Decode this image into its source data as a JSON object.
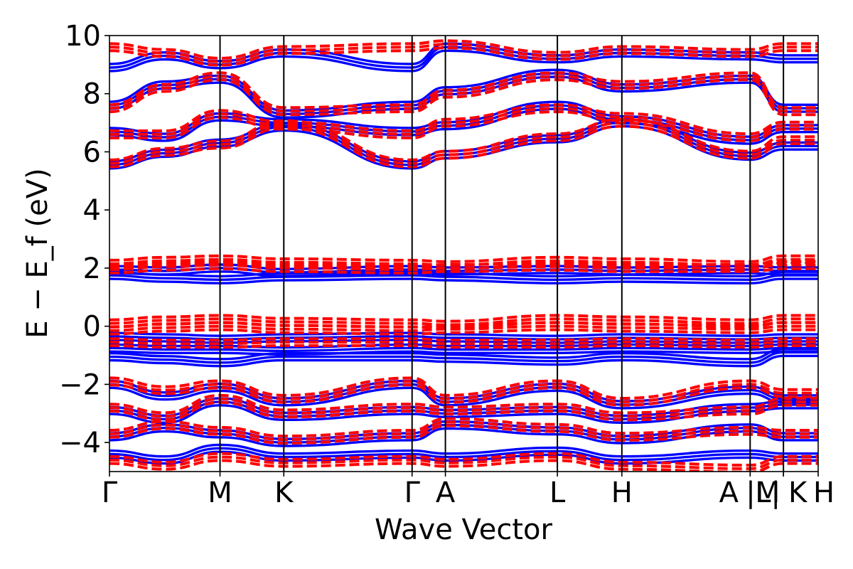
{
  "chart_data": {
    "type": "line",
    "title": "",
    "xlabel": "Wave Vector",
    "ylabel": "E − E_f (eV)",
    "ylim": [
      -5,
      10
    ],
    "yticks": [
      -4,
      -2,
      0,
      2,
      4,
      6,
      8,
      10
    ],
    "ytick_labels": [
      "−4",
      "−2",
      "0",
      "2",
      "4",
      "6",
      "8",
      "10"
    ],
    "xlim": [
      0,
      1
    ],
    "high_symmetry_points": [
      {
        "label": "Γ",
        "x": 0.0
      },
      {
        "label": "M",
        "x": 0.156
      },
      {
        "label": "K",
        "x": 0.246
      },
      {
        "label": "Γ",
        "x": 0.427
      },
      {
        "label": "A",
        "x": 0.474
      },
      {
        "label": "L",
        "x": 0.632
      },
      {
        "label": "H",
        "x": 0.723
      },
      {
        "label": "A",
        "x": 0.904
      },
      {
        "label": "|M",
        "x": 0.904
      },
      {
        "label": "L|",
        "x": 0.951
      },
      {
        "label": "K",
        "x": 0.951
      },
      {
        "label": "H",
        "x": 1.0
      }
    ],
    "colors": {
      "blue_series": "#0000ff",
      "red_series": "#ff0000"
    },
    "series": [
      {
        "style": "solid",
        "color": "#0000ff",
        "x": [
          0.0,
          0.078,
          0.156,
          0.246,
          0.427,
          0.474,
          0.632,
          0.723,
          0.904,
          0.951
        ],
        "bands": [
          [
            5.55,
            5.95,
            6.3,
            6.85,
            5.55,
            5.9,
            6.45,
            7.0,
            5.85,
            6.2
          ],
          [
            6.7,
            6.5,
            7.2,
            7.0,
            6.7,
            6.9,
            7.6,
            7.1,
            6.4,
            6.8
          ],
          [
            7.6,
            8.3,
            8.5,
            7.3,
            7.6,
            8.1,
            8.7,
            8.2,
            8.5,
            7.5
          ],
          [
            8.9,
            9.3,
            9.0,
            9.4,
            8.9,
            9.6,
            9.2,
            9.4,
            9.3,
            9.2
          ],
          [
            1.75,
            1.65,
            1.6,
            1.7,
            1.75,
            1.7,
            1.6,
            1.65,
            1.6,
            1.75
          ],
          [
            1.95,
            1.9,
            2.0,
            1.85,
            1.95,
            1.9,
            1.95,
            1.9,
            1.95,
            1.9
          ],
          [
            -0.35,
            -0.4,
            -0.45,
            -0.4,
            -0.35,
            -0.4,
            -0.45,
            -0.4,
            -0.45,
            -0.4
          ],
          [
            -0.75,
            -0.8,
            -0.8,
            -0.85,
            -0.75,
            -0.8,
            -0.8,
            -0.75,
            -0.8,
            -0.75
          ],
          [
            -1.05,
            -1.15,
            -1.25,
            -1.05,
            -1.05,
            -1.1,
            -1.2,
            -1.05,
            -1.25,
            -0.9
          ],
          [
            -2.0,
            -2.4,
            -2.1,
            -2.6,
            -2.0,
            -2.6,
            -2.1,
            -2.7,
            -2.2,
            -2.5
          ],
          [
            -2.9,
            -3.2,
            -2.6,
            -3.1,
            -2.9,
            -3.0,
            -2.9,
            -3.2,
            -2.8,
            -2.7
          ],
          [
            -3.8,
            -3.5,
            -3.7,
            -4.0,
            -3.8,
            -3.4,
            -3.6,
            -3.9,
            -3.5,
            -3.8
          ],
          [
            -4.4,
            -4.6,
            -4.2,
            -4.5,
            -4.4,
            -4.5,
            -4.3,
            -4.6,
            -4.4,
            -4.5
          ]
        ]
      },
      {
        "style": "dashed",
        "color": "#ff0000",
        "x": [
          0.0,
          0.078,
          0.156,
          0.246,
          0.427,
          0.474,
          0.632,
          0.723,
          0.904,
          0.951
        ],
        "bands": [
          [
            5.6,
            6.0,
            6.25,
            6.95,
            5.6,
            5.9,
            6.5,
            7.0,
            5.9,
            6.4
          ],
          [
            6.6,
            6.6,
            7.3,
            6.9,
            6.6,
            7.0,
            7.5,
            7.2,
            6.5,
            6.9
          ],
          [
            7.5,
            8.2,
            8.6,
            7.4,
            7.5,
            8.0,
            8.6,
            8.3,
            8.6,
            7.4
          ],
          [
            9.6,
            9.4,
            9.1,
            9.5,
            9.6,
            9.7,
            9.3,
            9.5,
            9.4,
            9.6
          ],
          [
            2.15,
            2.25,
            2.3,
            2.2,
            2.15,
            2.1,
            2.25,
            2.2,
            2.1,
            2.3
          ],
          [
            1.95,
            2.05,
            2.1,
            2.0,
            1.95,
            2.0,
            2.05,
            2.0,
            2.0,
            2.1
          ],
          [
            0.1,
            0.2,
            0.25,
            0.15,
            0.1,
            0.05,
            0.25,
            0.2,
            0.1,
            0.25
          ],
          [
            -0.15,
            -0.05,
            0.0,
            -0.1,
            -0.15,
            -0.1,
            0.0,
            -0.05,
            -0.1,
            0.0
          ],
          [
            -0.55,
            -0.6,
            -0.6,
            -0.55,
            -0.55,
            -0.6,
            -0.6,
            -0.55,
            -0.6,
            -0.55
          ],
          [
            -1.9,
            -2.2,
            -2.0,
            -2.5,
            -1.9,
            -2.5,
            -2.0,
            -2.6,
            -2.0,
            -2.3
          ],
          [
            -2.8,
            -3.1,
            -2.5,
            -3.0,
            -2.8,
            -2.9,
            -2.8,
            -3.1,
            -2.9,
            -2.6
          ],
          [
            -3.7,
            -3.4,
            -3.6,
            -3.9,
            -3.7,
            -3.3,
            -3.5,
            -3.8,
            -3.6,
            -3.7
          ],
          [
            -4.6,
            -4.8,
            -4.5,
            -4.7,
            -4.6,
            -4.7,
            -4.5,
            -4.8,
            -4.9,
            -4.6
          ]
        ]
      }
    ],
    "grid": false,
    "legend": "none"
  }
}
